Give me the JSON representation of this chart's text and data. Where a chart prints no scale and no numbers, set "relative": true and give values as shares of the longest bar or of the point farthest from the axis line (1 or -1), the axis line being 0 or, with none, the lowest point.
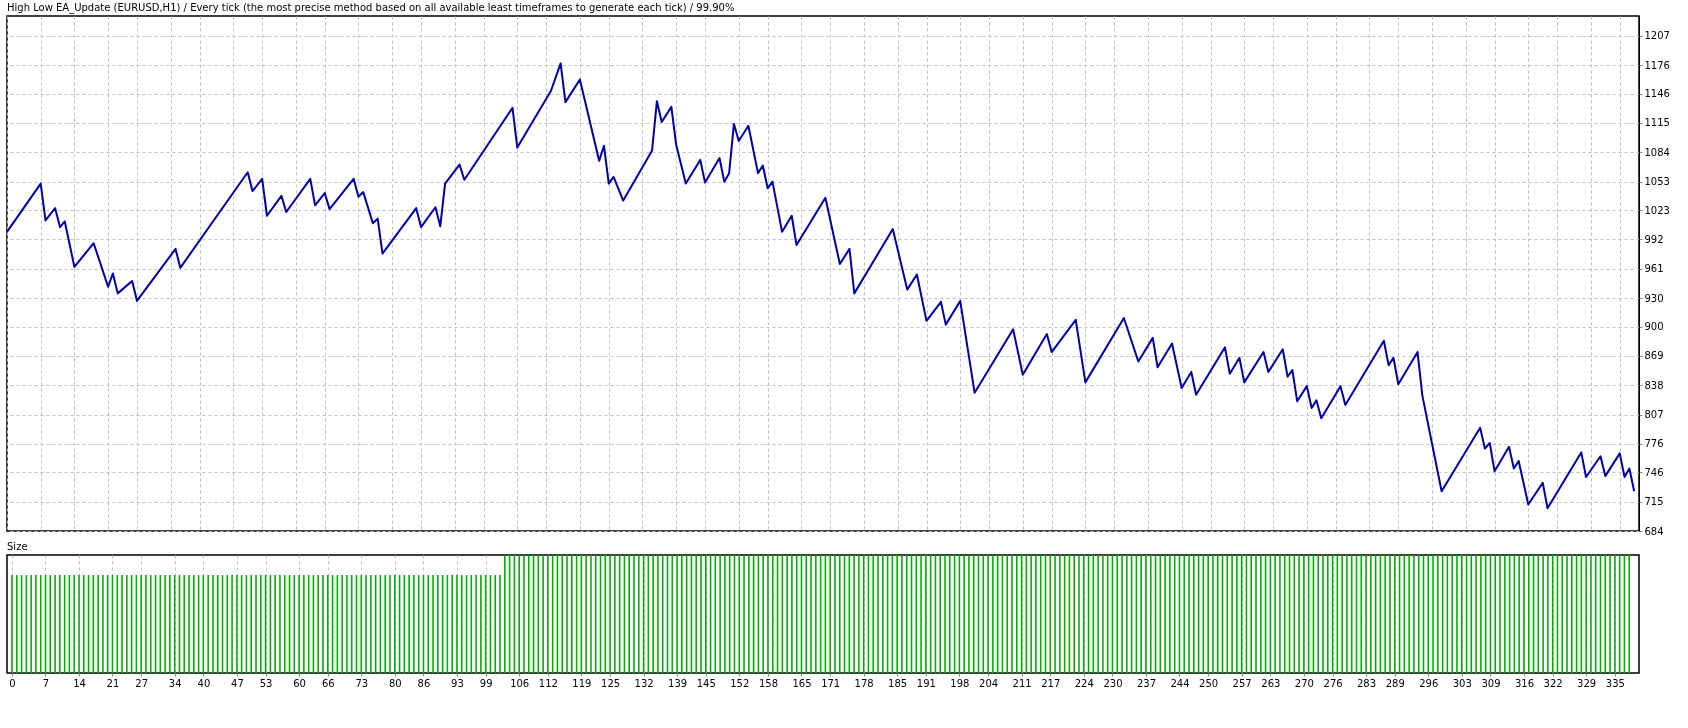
{
  "chart_data": [
    {
      "type": "line",
      "title": "High Low EA_Update (EURUSD,H1) / Every tick (the most precise method based on all available least timeframes to generate each tick) / 99.90%",
      "xlim": [
        0,
        339
      ],
      "xticks": [
        0,
        7,
        14,
        21,
        27,
        34,
        40,
        47,
        53,
        60,
        66,
        73,
        80,
        86,
        93,
        99,
        106,
        112,
        119,
        125,
        132,
        139,
        145,
        152,
        158,
        165,
        171,
        178,
        185,
        191,
        198,
        204,
        211,
        217,
        224,
        230,
        237,
        244,
        250,
        257,
        263,
        270,
        276,
        283,
        289,
        296,
        303,
        309,
        316,
        322,
        329,
        335
      ],
      "ylim": [
        684,
        1228
      ],
      "yticks": [
        684,
        715,
        746,
        776,
        807,
        838,
        869,
        900,
        930,
        961,
        992,
        1023,
        1053,
        1084,
        1115,
        1146,
        1176,
        1207
      ],
      "grid": true,
      "tick_labels": "y",
      "x": [
        0,
        7,
        8,
        10,
        11,
        12,
        14,
        18,
        21,
        22,
        23,
        26,
        27,
        35,
        36,
        50,
        51,
        53,
        54,
        57,
        58,
        63,
        64,
        66,
        67,
        72,
        73,
        74,
        76,
        77,
        78,
        85,
        86,
        89,
        90,
        91,
        94,
        95,
        105,
        106,
        113,
        115,
        116,
        119,
        123,
        124,
        125,
        126,
        128,
        134,
        135,
        136,
        138,
        139,
        141,
        144,
        145,
        148,
        149,
        150,
        151,
        152,
        154,
        156,
        157,
        158,
        159,
        161,
        163,
        164,
        170,
        173,
        175,
        176,
        184,
        187,
        189,
        191,
        194,
        195,
        198,
        201,
        209,
        211,
        216,
        217,
        222,
        224,
        232,
        235,
        238,
        239,
        242,
        244,
        246,
        247,
        253,
        254,
        256,
        257,
        261,
        262,
        265,
        266,
        267,
        268,
        270,
        271,
        272,
        273,
        277,
        278,
        286,
        287,
        288,
        289,
        293,
        294,
        298,
        306,
        307,
        308,
        309,
        312,
        313,
        314,
        316,
        319,
        320,
        327,
        328,
        331,
        332,
        335,
        336,
        337,
        338
      ],
      "series": [
        {
          "color": "#0000a8",
          "values": [
            1000,
            1051,
            1012,
            1025,
            1005,
            1011,
            963,
            988,
            942,
            956,
            935,
            948,
            927,
            982,
            962,
            1063,
            1043,
            1056,
            1017,
            1038,
            1021,
            1056,
            1028,
            1041,
            1024,
            1056,
            1037,
            1042,
            1009,
            1014,
            977,
            1025,
            1005,
            1026,
            1006,
            1051,
            1071,
            1055,
            1131,
            1089,
            1149,
            1178,
            1137,
            1161,
            1075,
            1091,
            1051,
            1058,
            1033,
            1086,
            1138,
            1116,
            1132,
            1092,
            1051,
            1076,
            1052,
            1078,
            1053,
            1062,
            1114,
            1096,
            1112,
            1062,
            1070,
            1046,
            1053,
            1000,
            1017,
            986,
            1036,
            966,
            982,
            935,
            1003,
            939,
            955,
            906,
            926,
            902,
            927,
            830,
            897,
            849,
            892,
            873,
            907,
            841,
            909,
            863,
            888,
            857,
            882,
            835,
            852,
            828,
            878,
            850,
            867,
            841,
            873,
            852,
            876,
            847,
            854,
            821,
            837,
            814,
            822,
            803,
            837,
            817,
            885,
            859,
            867,
            839,
            873,
            827,
            726,
            793,
            771,
            777,
            747,
            773,
            750,
            758,
            712,
            735,
            708,
            767,
            741,
            763,
            742,
            766,
            741,
            750,
            726
          ]
        }
      ]
    },
    {
      "type": "bar",
      "title": "Size",
      "relative": true,
      "xlim": [
        0,
        339
      ],
      "xticks": [
        0,
        7,
        14,
        21,
        27,
        34,
        40,
        47,
        53,
        60,
        66,
        73,
        80,
        86,
        93,
        99,
        106,
        112,
        119,
        125,
        132,
        139,
        145,
        152,
        158,
        165,
        171,
        178,
        185,
        191,
        198,
        204,
        211,
        217,
        224,
        230,
        237,
        244,
        250,
        257,
        263,
        270,
        276,
        283,
        289,
        296,
        303,
        309,
        316,
        322,
        329,
        335
      ],
      "grid": "x",
      "tick_labels": "x",
      "x": [
        0,
        1,
        2,
        3,
        4,
        5,
        6,
        7,
        8,
        9,
        10,
        11,
        12,
        13,
        14,
        15,
        16,
        17,
        18,
        19,
        20,
        21,
        22,
        23,
        24,
        25,
        26,
        27,
        28,
        29,
        30,
        31,
        32,
        33,
        34,
        35,
        36,
        37,
        38,
        39,
        40,
        41,
        42,
        43,
        44,
        45,
        46,
        47,
        48,
        49,
        50,
        51,
        52,
        53,
        54,
        55,
        56,
        57,
        58,
        59,
        60,
        61,
        62,
        63,
        64,
        65,
        66,
        67,
        68,
        69,
        70,
        71,
        72,
        73,
        74,
        75,
        76,
        77,
        78,
        79,
        80,
        81,
        82,
        83,
        84,
        85,
        86,
        87,
        88,
        89,
        90,
        91,
        92,
        93,
        94,
        95,
        96,
        97,
        98,
        99,
        100,
        101,
        102,
        103,
        104,
        105,
        106,
        107,
        108,
        109,
        110,
        111,
        112,
        113,
        114,
        115,
        116,
        117,
        118,
        119,
        120,
        121,
        122,
        123,
        124,
        125,
        126,
        127,
        128,
        129,
        130,
        131,
        132,
        133,
        134,
        135,
        136,
        137,
        138,
        139,
        140,
        141,
        142,
        143,
        144,
        145,
        146,
        147,
        148,
        149,
        150,
        151,
        152,
        153,
        154,
        155,
        156,
        157,
        158,
        159,
        160,
        161,
        162,
        163,
        164,
        165,
        166,
        167,
        168,
        169,
        170,
        171,
        172,
        173,
        174,
        175,
        176,
        177,
        178,
        179,
        180,
        181,
        182,
        183,
        184,
        185,
        186,
        187,
        188,
        189,
        190,
        191,
        192,
        193,
        194,
        195,
        196,
        197,
        198,
        199,
        200,
        201,
        202,
        203,
        204,
        205,
        206,
        207,
        208,
        209,
        210,
        211,
        212,
        213,
        214,
        215,
        216,
        217,
        218,
        219,
        220,
        221,
        222,
        223,
        224,
        225,
        226,
        227,
        228,
        229,
        230,
        231,
        232,
        233,
        234,
        235,
        236,
        237,
        238,
        239,
        240,
        241,
        242,
        243,
        244,
        245,
        246,
        247,
        248,
        249,
        250,
        251,
        252,
        253,
        254,
        255,
        256,
        257,
        258,
        259,
        260,
        261,
        262,
        263,
        264,
        265,
        266,
        267,
        268,
        269,
        270,
        271,
        272,
        273,
        274,
        275,
        276,
        277,
        278,
        279,
        280,
        281,
        282,
        283,
        284,
        285,
        286,
        287,
        288,
        289,
        290,
        291,
        292,
        293,
        294,
        295,
        296,
        297,
        298,
        299,
        300,
        301,
        302,
        303,
        304,
        305,
        306,
        307,
        308,
        309,
        310,
        311,
        312,
        313,
        314,
        315,
        316,
        317,
        318,
        319,
        320,
        321,
        322,
        323,
        324,
        325,
        326,
        327,
        328,
        329,
        330,
        331,
        332,
        333,
        334,
        335,
        336,
        337,
        338
      ],
      "series": [
        {
          "color": "#00b000",
          "values": [
            0.83,
            0.83,
            0.83,
            0.83,
            0.83,
            0.83,
            0.83,
            0.83,
            0.83,
            0.83,
            0.83,
            0.83,
            0.83,
            0.83,
            0.83,
            0.83,
            0.83,
            0.83,
            0.83,
            0.83,
            0.83,
            0.83,
            0.83,
            0.83,
            0.83,
            0.83,
            0.83,
            0.83,
            0.83,
            0.83,
            0.83,
            0.83,
            0.83,
            0.83,
            0.83,
            0.83,
            0.83,
            0.83,
            0.83,
            0.83,
            0.83,
            0.83,
            0.83,
            0.83,
            0.83,
            0.83,
            0.83,
            0.83,
            0.83,
            0.83,
            0.83,
            0.83,
            0.83,
            0.83,
            0.83,
            0.83,
            0.83,
            0.83,
            0.83,
            0.83,
            0.83,
            0.83,
            0.83,
            0.83,
            0.83,
            0.83,
            0.83,
            0.83,
            0.83,
            0.83,
            0.83,
            0.83,
            0.83,
            0.83,
            0.83,
            0.83,
            0.83,
            0.83,
            0.83,
            0.83,
            0.83,
            0.83,
            0.83,
            0.83,
            0.83,
            0.83,
            0.83,
            0.83,
            0.83,
            0.83,
            0.83,
            0.83,
            0.83,
            0.83,
            0.83,
            0.83,
            0.83,
            0.83,
            0.83,
            0.83,
            0.83,
            0.83,
            0.83,
            1,
            1,
            1,
            1,
            1,
            1,
            1,
            1,
            1,
            1,
            1,
            1,
            1,
            1,
            1,
            1,
            1,
            1,
            1,
            1,
            1,
            1,
            1,
            1,
            1,
            1,
            1,
            1,
            1,
            1,
            1,
            1,
            1,
            1,
            1,
            1,
            1,
            1,
            1,
            1,
            1,
            1,
            1,
            1,
            1,
            1,
            1,
            1,
            1,
            1,
            1,
            1,
            1,
            1,
            1,
            1,
            1,
            1,
            1,
            1,
            1,
            1,
            1,
            1,
            1,
            1,
            1,
            1,
            1,
            1,
            1,
            1,
            1,
            1,
            1,
            1,
            1,
            1,
            1,
            1,
            1,
            1,
            1,
            1,
            1,
            1,
            1,
            1,
            1,
            1,
            1,
            1,
            1,
            1,
            1,
            1,
            1,
            1,
            1,
            1,
            1,
            1,
            1,
            1,
            1,
            1,
            1,
            1,
            1,
            1,
            1,
            1,
            1,
            1,
            1,
            1,
            1,
            1,
            1,
            1,
            1,
            1,
            1,
            1,
            1,
            1,
            1,
            1,
            1,
            1,
            1,
            1,
            1,
            1,
            1,
            1,
            1,
            1,
            1,
            1,
            1,
            1,
            1,
            1,
            1,
            1,
            1,
            1,
            1,
            1,
            1,
            1,
            1,
            1,
            1,
            1,
            1,
            1,
            1,
            1,
            1,
            1,
            1,
            1,
            1,
            1,
            1,
            1,
            1,
            1,
            1,
            1,
            1,
            1,
            1,
            1,
            1,
            1,
            1,
            1,
            1,
            1,
            1,
            1,
            1,
            1,
            1,
            1,
            1,
            1,
            1,
            1,
            1,
            1,
            1,
            1,
            1,
            1,
            1,
            1,
            1,
            1,
            1,
            1,
            1,
            1,
            1,
            1,
            1,
            1,
            1,
            1,
            1,
            1,
            1,
            1,
            1,
            1,
            1,
            1,
            1,
            1,
            1,
            1,
            1,
            1,
            1,
            1,
            1,
            1,
            1,
            1,
            1,
            1,
            1,
            1
          ]
        }
      ]
    }
  ]
}
